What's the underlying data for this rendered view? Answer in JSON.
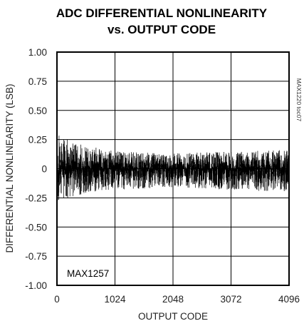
{
  "chart_data": {
    "type": "line",
    "title_line1": "ADC DIFFERENTIAL NONLINEARITY",
    "title_line2": "vs. OUTPUT CODE",
    "xlabel": "OUTPUT CODE",
    "ylabel": "DIFFERENTIAL NONLINEARITY (LSB)",
    "xlim": [
      0,
      4096
    ],
    "ylim": [
      -1.0,
      1.0
    ],
    "x_ticks": [
      0,
      1024,
      2048,
      3072,
      4096
    ],
    "x_tick_labels": [
      "0",
      "1024",
      "2048",
      "3072",
      "4096"
    ],
    "y_ticks": [
      1.0,
      0.75,
      0.5,
      0.25,
      0,
      -0.25,
      -0.5,
      -0.75,
      -1.0
    ],
    "y_tick_labels": [
      "1.00",
      "0.75",
      "0.50",
      "0.25",
      "0",
      "-0.25",
      "-0.50",
      "-0.75",
      "-1.00"
    ],
    "grid": true,
    "annotation": "MAX1257",
    "figure_code": "MAX1220 toc07",
    "series_envelope": {
      "x": [
        0,
        300,
        1024,
        2048,
        3072,
        4096
      ],
      "upper": [
        0.3,
        0.22,
        0.15,
        0.13,
        0.15,
        0.16
      ],
      "lower": [
        -0.3,
        -0.24,
        -0.18,
        -0.16,
        -0.18,
        -0.2
      ]
    },
    "colors": {
      "trace": "#000000",
      "grid": "#000000",
      "background": "#ffffff"
    }
  }
}
